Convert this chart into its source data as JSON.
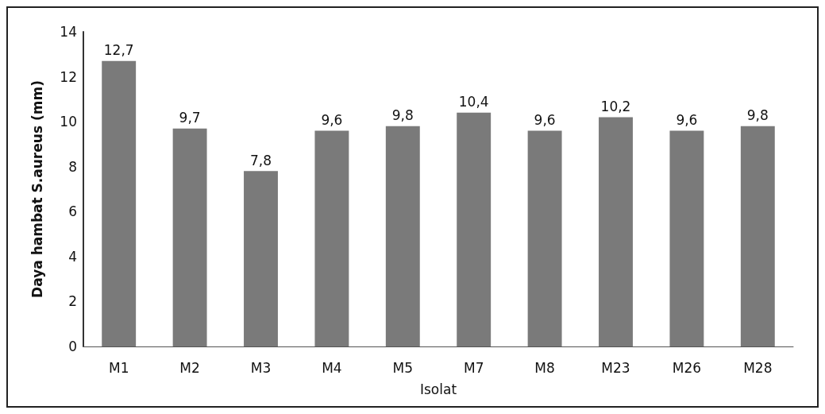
{
  "chart_data": {
    "type": "bar",
    "ylabel": "Daya hambat S.aureus (mm)",
    "xlabel": "Isolat",
    "categories": [
      "M1",
      "M2",
      "M3",
      "M4",
      "M5",
      "M7",
      "M8",
      "M23",
      "M26",
      "M28"
    ],
    "values": [
      12.7,
      9.7,
      7.8,
      9.6,
      9.8,
      10.4,
      9.6,
      10.2,
      9.6,
      9.8
    ],
    "value_labels": [
      "12,7",
      "9,7",
      "7,8",
      "9,6",
      "9,8",
      "10,4",
      "9,6",
      "10,2",
      "9,6",
      "9,8"
    ],
    "color": "#7a7a7a",
    "ylim": [
      0,
      14
    ],
    "yticks": [
      0,
      2,
      4,
      6,
      8,
      10,
      12,
      14
    ],
    "grid": false
  }
}
